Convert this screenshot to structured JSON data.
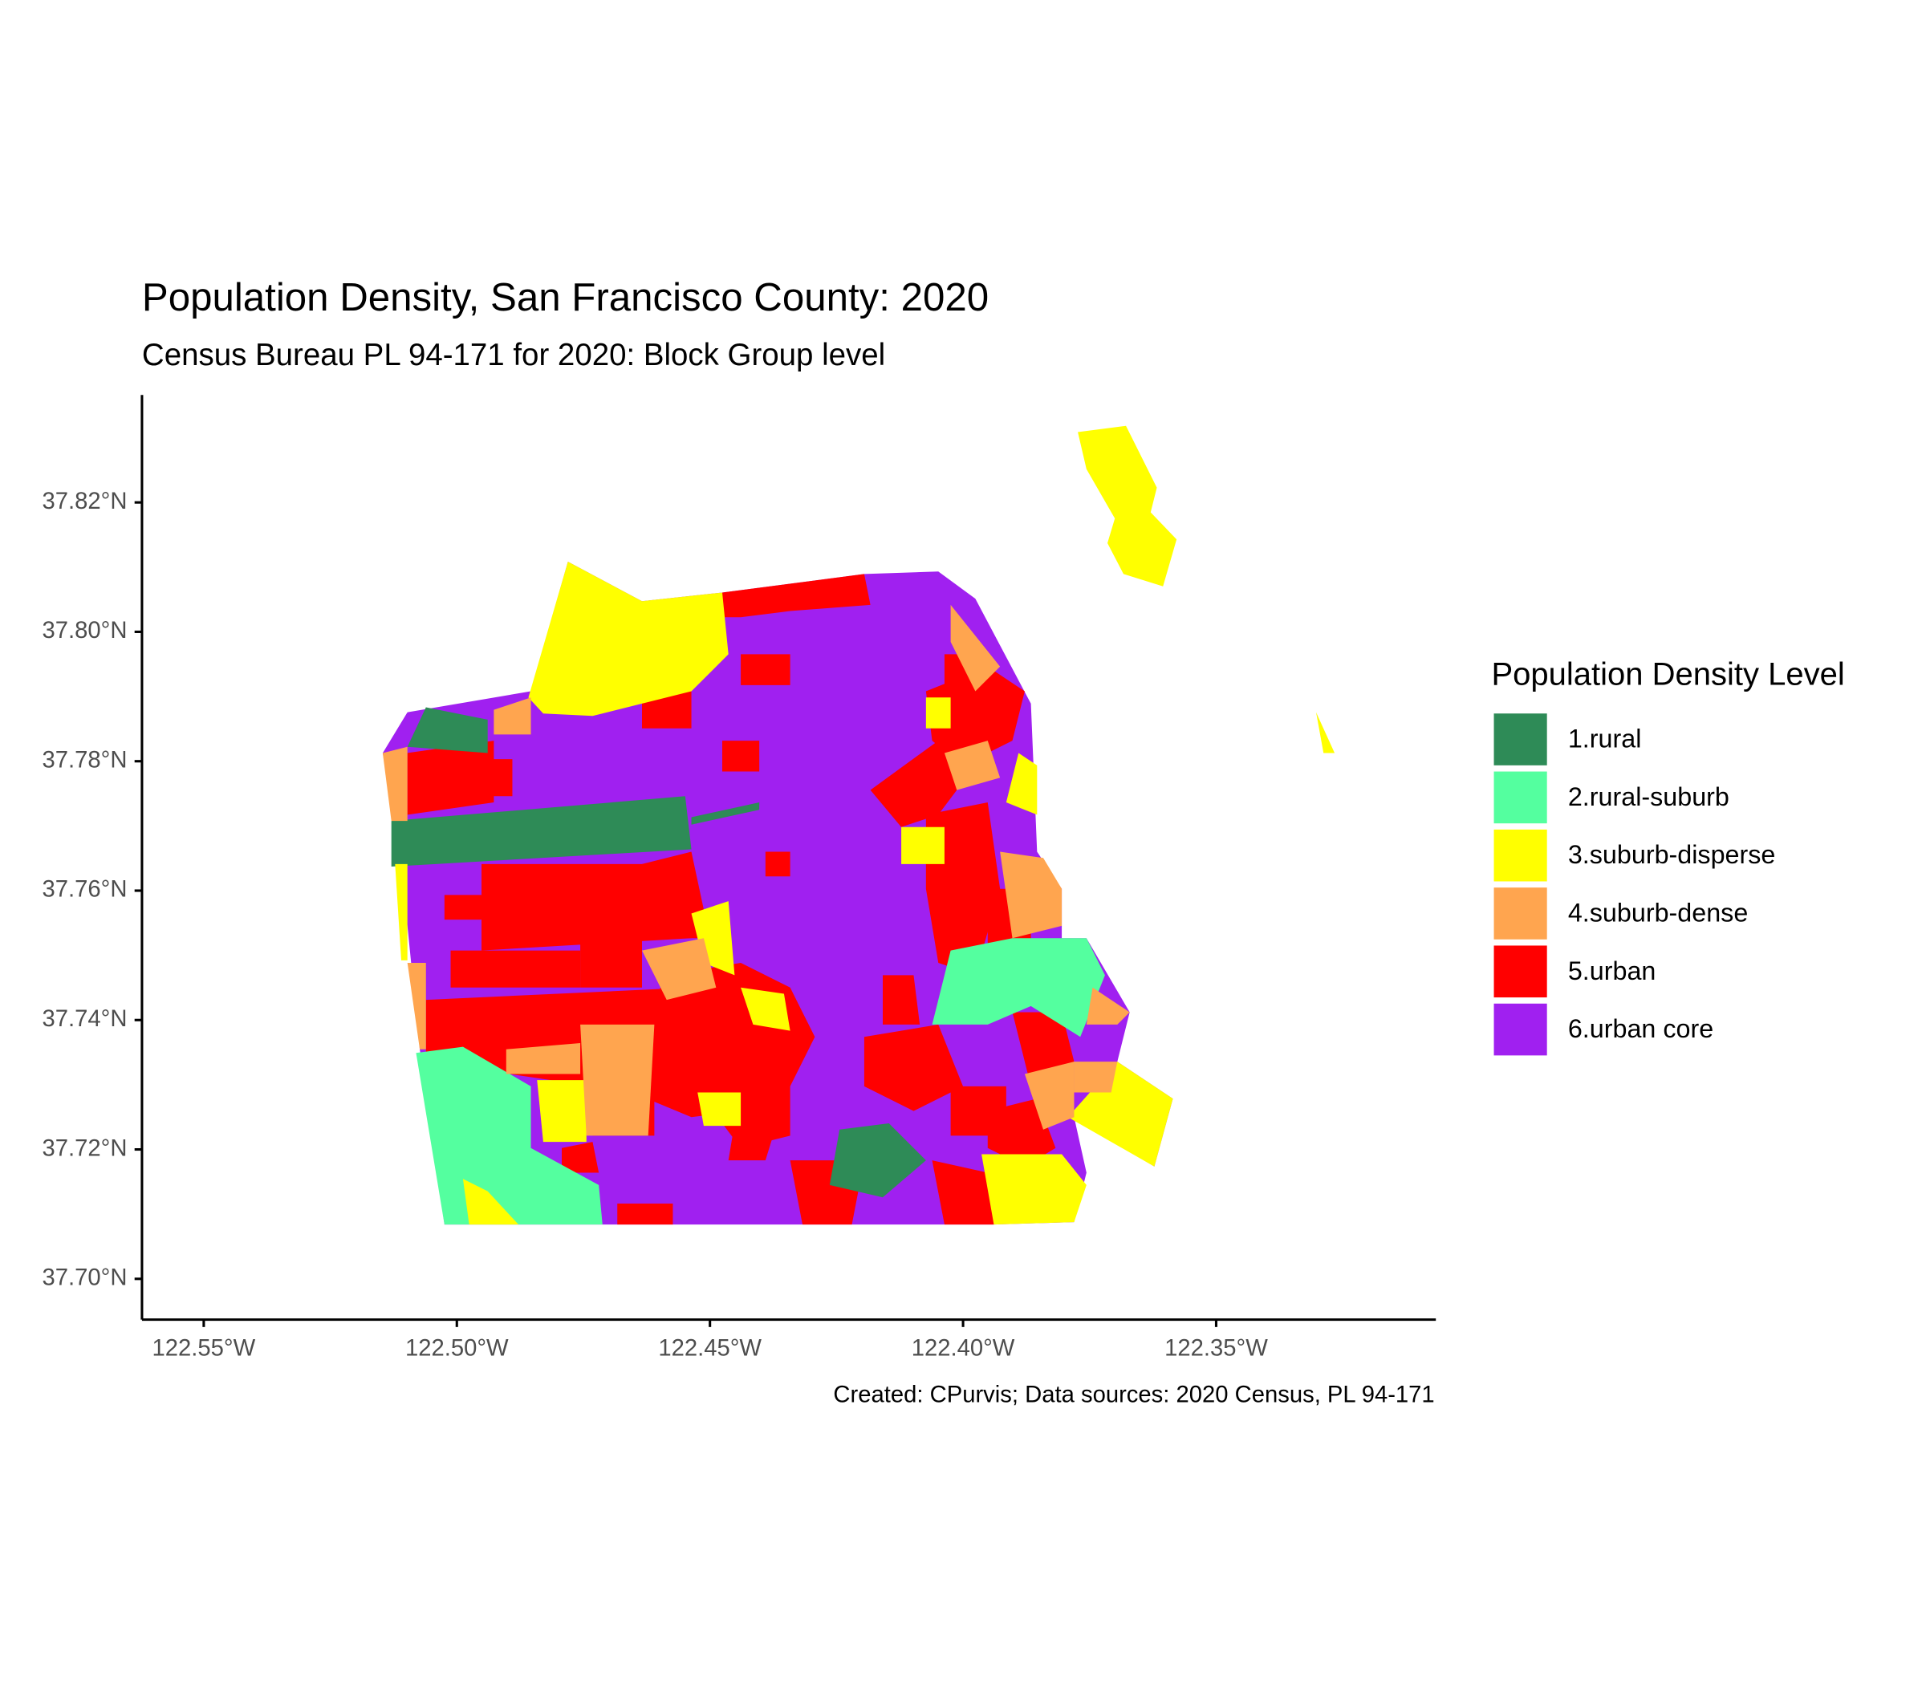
{
  "chart_data": {
    "type": "choropleth",
    "title": "Population Density, San Francisco County: 2020",
    "subtitle": "Census Bureau PL 94-171 for 2020: Block Group level",
    "caption": "Created: CPurvis; Data sources: 2020 Census, PL 94-171",
    "legend": {
      "title": "Population Density Level",
      "position": "right",
      "items": [
        {
          "label": "1.rural",
          "color": "#2e8b57"
        },
        {
          "label": "2.rural-suburb",
          "color": "#54ff9f"
        },
        {
          "label": "3.suburb-disperse",
          "color": "#ffff00"
        },
        {
          "label": "4.suburb-dense",
          "color": "#ffa54f"
        },
        {
          "label": "5.urban",
          "color": "#ff0000"
        },
        {
          "label": "6.urban core",
          "color": "#a020f0"
        }
      ]
    },
    "xlim": [
      -122.5622,
      -122.3066
    ],
    "ylim": [
      37.6937,
      37.8366
    ],
    "xticks": [
      {
        "value": -122.55,
        "label": "122.55°W"
      },
      {
        "value": -122.5,
        "label": "122.50°W"
      },
      {
        "value": -122.45,
        "label": "122.45°W"
      },
      {
        "value": -122.4,
        "label": "122.40°W"
      },
      {
        "value": -122.35,
        "label": "122.35°W"
      }
    ],
    "yticks": [
      {
        "value": 37.7,
        "label": "37.70°N"
      },
      {
        "value": 37.72,
        "label": "37.72°N"
      },
      {
        "value": 37.74,
        "label": "37.74°N"
      },
      {
        "value": 37.76,
        "label": "37.76°N"
      },
      {
        "value": 37.78,
        "label": "37.78°N"
      },
      {
        "value": 37.8,
        "label": "37.80°N"
      },
      {
        "value": 37.82,
        "label": "37.82°N"
      }
    ]
  }
}
